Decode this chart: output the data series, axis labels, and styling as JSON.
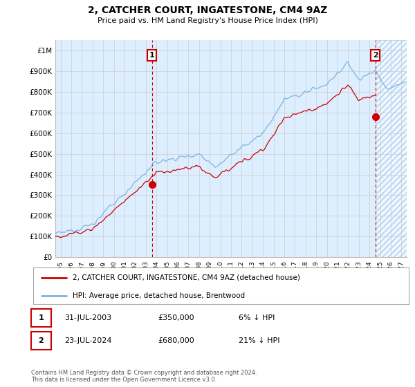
{
  "title": "2, CATCHER COURT, INGATESTONE, CM4 9AZ",
  "subtitle": "Price paid vs. HM Land Registry's House Price Index (HPI)",
  "ylabel_ticks": [
    "£0",
    "£100K",
    "£200K",
    "£300K",
    "£400K",
    "£500K",
    "£600K",
    "£700K",
    "£800K",
    "£900K",
    "£1M"
  ],
  "ytick_values": [
    0,
    100000,
    200000,
    300000,
    400000,
    500000,
    600000,
    700000,
    800000,
    900000,
    1000000
  ],
  "ylim": [
    0,
    1050000
  ],
  "xlim_start": 1994.5,
  "xlim_end": 2027.5,
  "xtick_years": [
    1995,
    1996,
    1997,
    1998,
    1999,
    2000,
    2001,
    2002,
    2003,
    2004,
    2005,
    2006,
    2007,
    2008,
    2009,
    2010,
    2011,
    2012,
    2013,
    2014,
    2015,
    2016,
    2017,
    2018,
    2019,
    2020,
    2021,
    2022,
    2023,
    2024,
    2025,
    2026,
    2027
  ],
  "hpi_color": "#7ab3e0",
  "price_color": "#cc0000",
  "sale1_x": 2003.58,
  "sale1_y": 350000,
  "sale1_label": "1",
  "sale2_x": 2024.56,
  "sale2_y": 680000,
  "sale2_label": "2",
  "marker_box_color": "#cc0000",
  "vline_color": "#cc0000",
  "grid_color": "#cccccc",
  "chart_bg_color": "#ddeeff",
  "background_color": "#ffffff",
  "legend_line1": "2, CATCHER COURT, INGATESTONE, CM4 9AZ (detached house)",
  "legend_line2": "HPI: Average price, detached house, Brentwood",
  "table_row1": [
    "1",
    "31-JUL-2003",
    "£350,000",
    "6% ↓ HPI"
  ],
  "table_row2": [
    "2",
    "23-JUL-2024",
    "£680,000",
    "21% ↓ HPI"
  ],
  "footnote": "Contains HM Land Registry data © Crown copyright and database right 2024.\nThis data is licensed under the Open Government Licence v3.0.",
  "shaded_region_start": 2024.56,
  "shaded_region_end": 2027.5
}
